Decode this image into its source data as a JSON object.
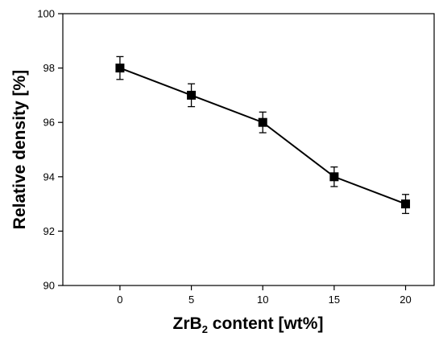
{
  "chart_data": {
    "type": "line",
    "title": "",
    "xlabel": {
      "main": "ZrB",
      "sub": "2",
      "rest": " content [wt%]"
    },
    "ylabel": "Relative density [%]",
    "xlim": [
      -4,
      22
    ],
    "ylim": [
      90,
      100
    ],
    "x_ticks": [
      0,
      5,
      10,
      15,
      20
    ],
    "y_ticks": [
      90,
      92,
      94,
      96,
      98,
      100
    ],
    "grid": false,
    "legend": "none",
    "series": [
      {
        "x": [
          0,
          5,
          10,
          15,
          20
        ],
        "y": [
          98.0,
          97.0,
          96.0,
          94.0,
          93.0
        ],
        "err": [
          0.42,
          0.42,
          0.38,
          0.36,
          0.35
        ],
        "marker": "square",
        "color": "#000000"
      }
    ]
  }
}
